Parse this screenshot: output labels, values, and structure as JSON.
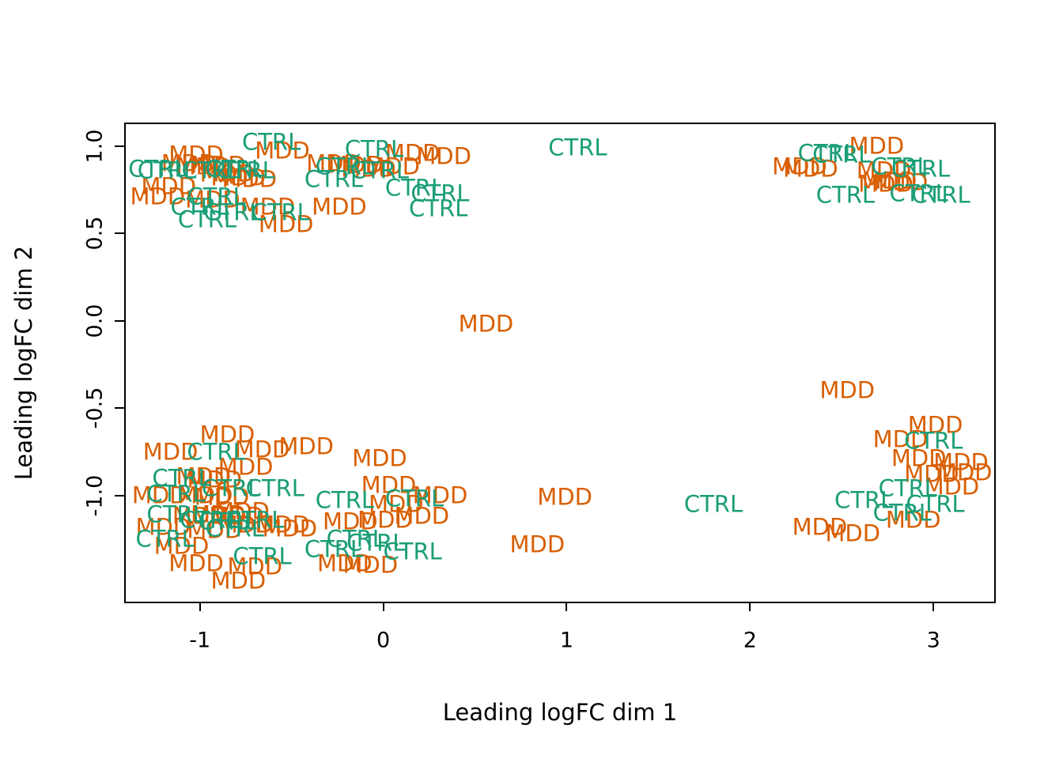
{
  "figure": {
    "background": "#ffffff",
    "xlabel": "Leading logFC dim 1",
    "ylabel": "Leading logFC dim 2"
  },
  "chart_data": {
    "type": "scatter",
    "point_style": "text-labels",
    "title": "",
    "xlabel": "Leading logFC dim 1",
    "ylabel": "Leading logFC dim 2",
    "xlim": [
      -1.404,
      3.331
    ],
    "ylim": [
      -1.607,
      1.126
    ],
    "grid": false,
    "legend": "none",
    "x_ticks": [
      -1,
      0,
      1,
      2,
      3
    ],
    "x_tick_labels": [
      "-1",
      "0",
      "1",
      "2",
      "3"
    ],
    "y_ticks": [
      1.0,
      0.5,
      0.0,
      -0.5,
      -1.0
    ],
    "y_tick_labels": [
      "1.0",
      "0.5",
      "0.0",
      "-0.5",
      "-1.0"
    ],
    "groups": {
      "MDD": {
        "label": "MDD",
        "color": "#D95F02"
      },
      "CTRL": {
        "label": "CTRL",
        "color": "#1B9E77"
      }
    },
    "series": [
      {
        "name": "MDD",
        "points": [
          [
            -0.55,
            0.97
          ],
          [
            -1.02,
            0.95
          ],
          [
            -1.06,
            0.9
          ],
          [
            -0.98,
            0.88
          ],
          [
            -0.9,
            0.89
          ],
          [
            -0.85,
            0.84
          ],
          [
            -0.79,
            0.82
          ],
          [
            -0.73,
            0.81
          ],
          [
            -1.17,
            0.77
          ],
          [
            -1.23,
            0.71
          ],
          [
            -0.93,
            0.69
          ],
          [
            -0.63,
            0.65
          ],
          [
            -0.24,
            0.65
          ],
          [
            -0.53,
            0.55
          ],
          [
            0.16,
            0.96
          ],
          [
            0.33,
            0.94
          ],
          [
            -0.27,
            0.9
          ],
          [
            -0.15,
            0.89
          ],
          [
            -0.08,
            0.87
          ],
          [
            0.05,
            0.88
          ],
          [
            2.69,
            1.0
          ],
          [
            2.27,
            0.88
          ],
          [
            2.33,
            0.87
          ],
          [
            2.73,
            0.86
          ],
          [
            2.76,
            0.8
          ],
          [
            2.82,
            0.79
          ],
          [
            2.74,
            0.78
          ],
          [
            0.56,
            -0.02
          ],
          [
            2.53,
            -0.4
          ],
          [
            0.99,
            -1.01
          ],
          [
            0.84,
            -1.28
          ],
          [
            -0.85,
            -0.65
          ],
          [
            -1.16,
            -0.75
          ],
          [
            -0.66,
            -0.74
          ],
          [
            -0.42,
            -0.72
          ],
          [
            -0.02,
            -0.79
          ],
          [
            -0.75,
            -0.84
          ],
          [
            -0.98,
            -0.89
          ],
          [
            -0.92,
            -0.91
          ],
          [
            -1.22,
            -1.0
          ],
          [
            -0.97,
            -1.0
          ],
          [
            -0.88,
            -1.01
          ],
          [
            -1.2,
            -1.18
          ],
          [
            -1.0,
            -1.12
          ],
          [
            -0.9,
            -1.11
          ],
          [
            -0.8,
            -1.12
          ],
          [
            -0.75,
            -1.17
          ],
          [
            -0.92,
            -1.2
          ],
          [
            -0.77,
            -1.09
          ],
          [
            -0.55,
            -1.17
          ],
          [
            -0.51,
            -1.19
          ],
          [
            -1.1,
            -1.29
          ],
          [
            -1.02,
            -1.39
          ],
          [
            -0.7,
            -1.41
          ],
          [
            -0.79,
            -1.49
          ],
          [
            0.03,
            -0.94
          ],
          [
            0.07,
            -1.05
          ],
          [
            0.31,
            -1.0
          ],
          [
            -0.18,
            -1.15
          ],
          [
            0.01,
            -1.14
          ],
          [
            0.21,
            -1.12
          ],
          [
            -0.21,
            -1.39
          ],
          [
            -0.07,
            -1.4
          ],
          [
            3.01,
            -0.6
          ],
          [
            2.82,
            -0.68
          ],
          [
            2.92,
            -0.79
          ],
          [
            3.15,
            -0.81
          ],
          [
            2.99,
            -0.88
          ],
          [
            3.17,
            -0.87
          ],
          [
            3.1,
            -0.95
          ],
          [
            2.89,
            -1.14
          ],
          [
            2.38,
            -1.18
          ],
          [
            2.56,
            -1.22
          ]
        ]
      },
      {
        "name": "CTRL",
        "points": [
          [
            -0.61,
            1.02
          ],
          [
            -1.23,
            0.87
          ],
          [
            -1.18,
            0.86
          ],
          [
            -0.94,
            0.86
          ],
          [
            -0.81,
            0.87
          ],
          [
            -0.75,
            0.86
          ],
          [
            -0.91,
            0.71
          ],
          [
            -1.0,
            0.65
          ],
          [
            -0.82,
            0.62
          ],
          [
            -0.56,
            0.62
          ],
          [
            -0.96,
            0.58
          ],
          [
            -0.05,
            0.98
          ],
          [
            -0.21,
            0.88
          ],
          [
            -0.02,
            0.86
          ],
          [
            -0.27,
            0.81
          ],
          [
            0.17,
            0.76
          ],
          [
            0.31,
            0.73
          ],
          [
            0.3,
            0.64
          ],
          [
            2.42,
            0.96
          ],
          [
            2.5,
            0.95
          ],
          [
            2.82,
            0.88
          ],
          [
            2.93,
            0.87
          ],
          [
            2.52,
            0.72
          ],
          [
            2.92,
            0.73
          ],
          [
            3.04,
            0.72
          ],
          [
            1.06,
            0.99
          ],
          [
            1.8,
            -1.05
          ],
          [
            -0.91,
            -0.75
          ],
          [
            -1.1,
            -0.9
          ],
          [
            -1.13,
            -0.99
          ],
          [
            -0.83,
            -0.96
          ],
          [
            -0.59,
            -0.96
          ],
          [
            -1.13,
            -1.11
          ],
          [
            -0.95,
            -1.14
          ],
          [
            -0.85,
            -1.15
          ],
          [
            -0.7,
            -1.14
          ],
          [
            -0.81,
            -1.19
          ],
          [
            -1.19,
            -1.25
          ],
          [
            -0.66,
            -1.35
          ],
          [
            -0.21,
            -1.03
          ],
          [
            0.17,
            -1.02
          ],
          [
            -0.15,
            -1.25
          ],
          [
            -0.04,
            -1.27
          ],
          [
            -0.27,
            -1.31
          ],
          [
            0.16,
            -1.32
          ],
          [
            3.0,
            -0.69
          ],
          [
            2.86,
            -0.96
          ],
          [
            2.62,
            -1.03
          ],
          [
            3.01,
            -1.05
          ],
          [
            2.83,
            -1.1
          ]
        ]
      }
    ]
  }
}
